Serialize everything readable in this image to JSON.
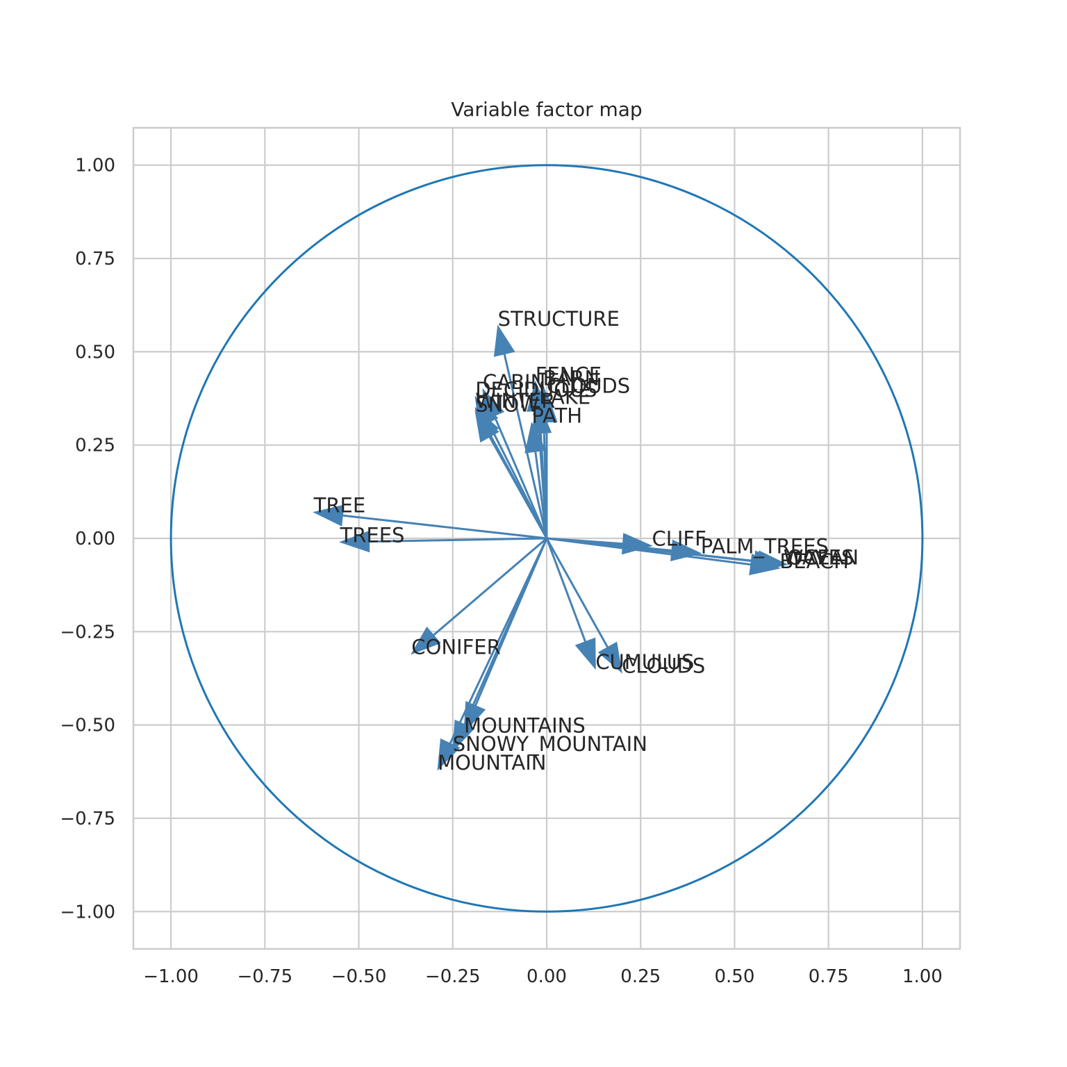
{
  "chart_data": {
    "type": "scatter",
    "title": "Variable factor map",
    "xlabel": "",
    "ylabel": "",
    "xlim": [
      -1.1,
      1.1
    ],
    "ylim": [
      -1.1,
      1.1
    ],
    "xticks": [
      -1.0,
      -0.75,
      -0.5,
      -0.25,
      0.0,
      0.25,
      0.5,
      0.75,
      1.0
    ],
    "yticks": [
      -1.0,
      -0.75,
      -0.5,
      -0.25,
      0.0,
      0.25,
      0.5,
      0.75,
      1.0
    ],
    "xtick_labels": [
      "−1.00",
      "−0.75",
      "−0.50",
      "−0.25",
      "0.00",
      "0.25",
      "0.50",
      "0.75",
      "1.00"
    ],
    "ytick_labels": [
      "−1.00",
      "−0.75",
      "−0.50",
      "−0.25",
      "0.00",
      "0.25",
      "0.50",
      "0.75",
      "1.00"
    ],
    "grid": true,
    "unit_circle": true,
    "arrow_color": "#4682b4",
    "circle_color": "#1f77b4",
    "variables": [
      {
        "label": "STRUCTURE",
        "x": -0.13,
        "y": 0.57
      },
      {
        "label": "FENCE",
        "x": -0.03,
        "y": 0.42
      },
      {
        "label": "CABIN",
        "x": -0.17,
        "y": 0.4
      },
      {
        "label": "BARN",
        "x": -0.01,
        "y": 0.41
      },
      {
        "label": "DECIDUOUS",
        "x": -0.19,
        "y": 0.38
      },
      {
        "label": "CLOUDS",
        "x": 0.0,
        "y": 0.39
      },
      {
        "label": "WINTER",
        "x": -0.19,
        "y": 0.35
      },
      {
        "label": "SNOW",
        "x": -0.19,
        "y": 0.34
      },
      {
        "label": "LAKE",
        "x": -0.02,
        "y": 0.36
      },
      {
        "label": "PATH",
        "x": -0.04,
        "y": 0.31
      },
      {
        "label": "TREE",
        "x": -0.62,
        "y": 0.07
      },
      {
        "label": "TREES",
        "x": -0.55,
        "y": -0.01
      },
      {
        "label": "CLIFF",
        "x": 0.28,
        "y": -0.02
      },
      {
        "label": "PALM_TREES",
        "x": 0.41,
        "y": -0.04
      },
      {
        "label": "OCEAN",
        "x": 0.64,
        "y": -0.07
      },
      {
        "label": "WAVES",
        "x": 0.63,
        "y": -0.07
      },
      {
        "label": "BEACH",
        "x": 0.62,
        "y": -0.08
      },
      {
        "label": "CONIFER",
        "x": -0.36,
        "y": -0.31
      },
      {
        "label": "CUMULUS",
        "x": 0.13,
        "y": -0.35
      },
      {
        "label": "CLOUDS",
        "x": 0.2,
        "y": -0.36
      },
      {
        "label": "MOUNTAINS",
        "x": -0.22,
        "y": -0.52
      },
      {
        "label": "SNOWY_MOUNTAIN",
        "x": -0.25,
        "y": -0.57
      },
      {
        "label": "MOUNTAIN",
        "x": -0.29,
        "y": -0.62
      }
    ]
  }
}
